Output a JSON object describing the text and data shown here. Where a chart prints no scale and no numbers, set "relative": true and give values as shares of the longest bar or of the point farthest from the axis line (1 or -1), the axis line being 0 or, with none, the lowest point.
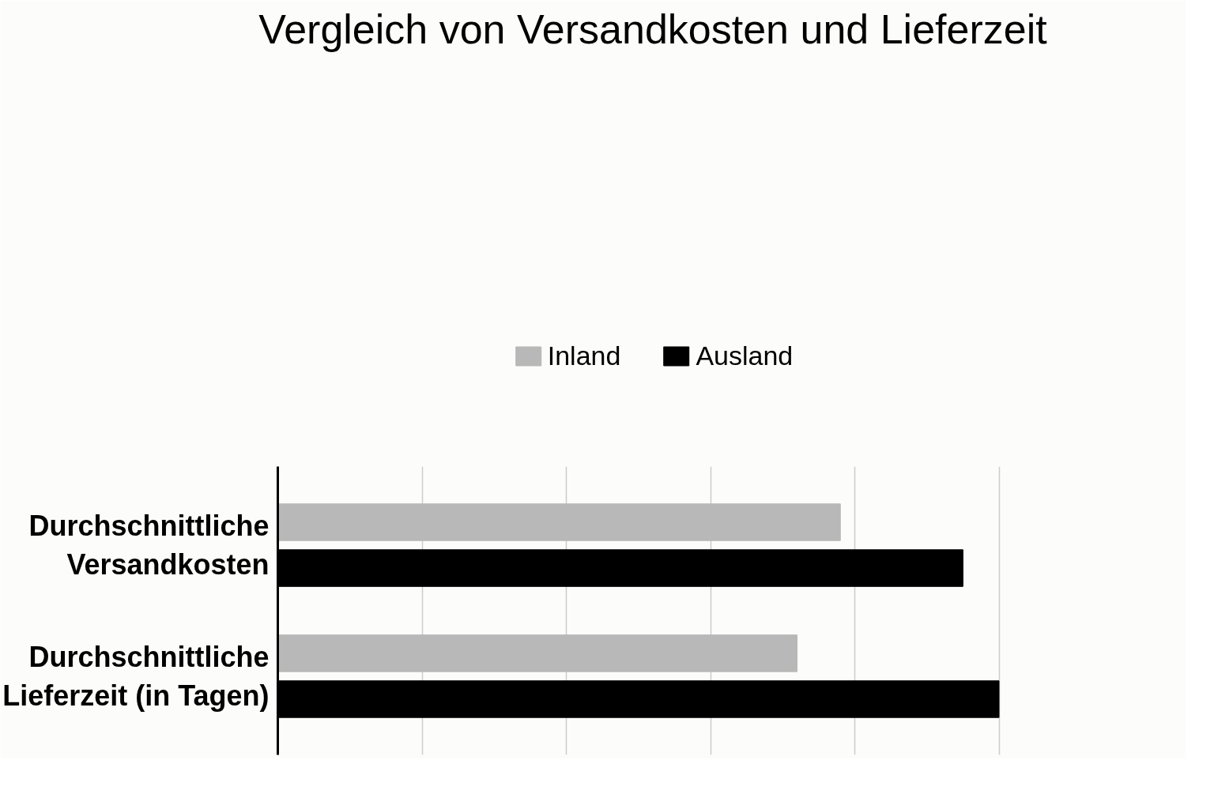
{
  "chart_data": {
    "type": "bar",
    "orientation": "horizontal",
    "relative": true,
    "title": "Vergleich von Versandkosten und Lieferzeit",
    "categories": [
      "Durchschnittliche Versandkosten",
      "Durchschnittliche Lieferzeit (in Tagen)"
    ],
    "series": [
      {
        "name": "Inland",
        "color": "#b8b8b8",
        "values": [
          0.78,
          0.72
        ]
      },
      {
        "name": "Ausland",
        "color": "#000000",
        "values": [
          0.95,
          1
        ]
      }
    ],
    "grid": "x",
    "legend": "top",
    "tick_labels": "y"
  }
}
